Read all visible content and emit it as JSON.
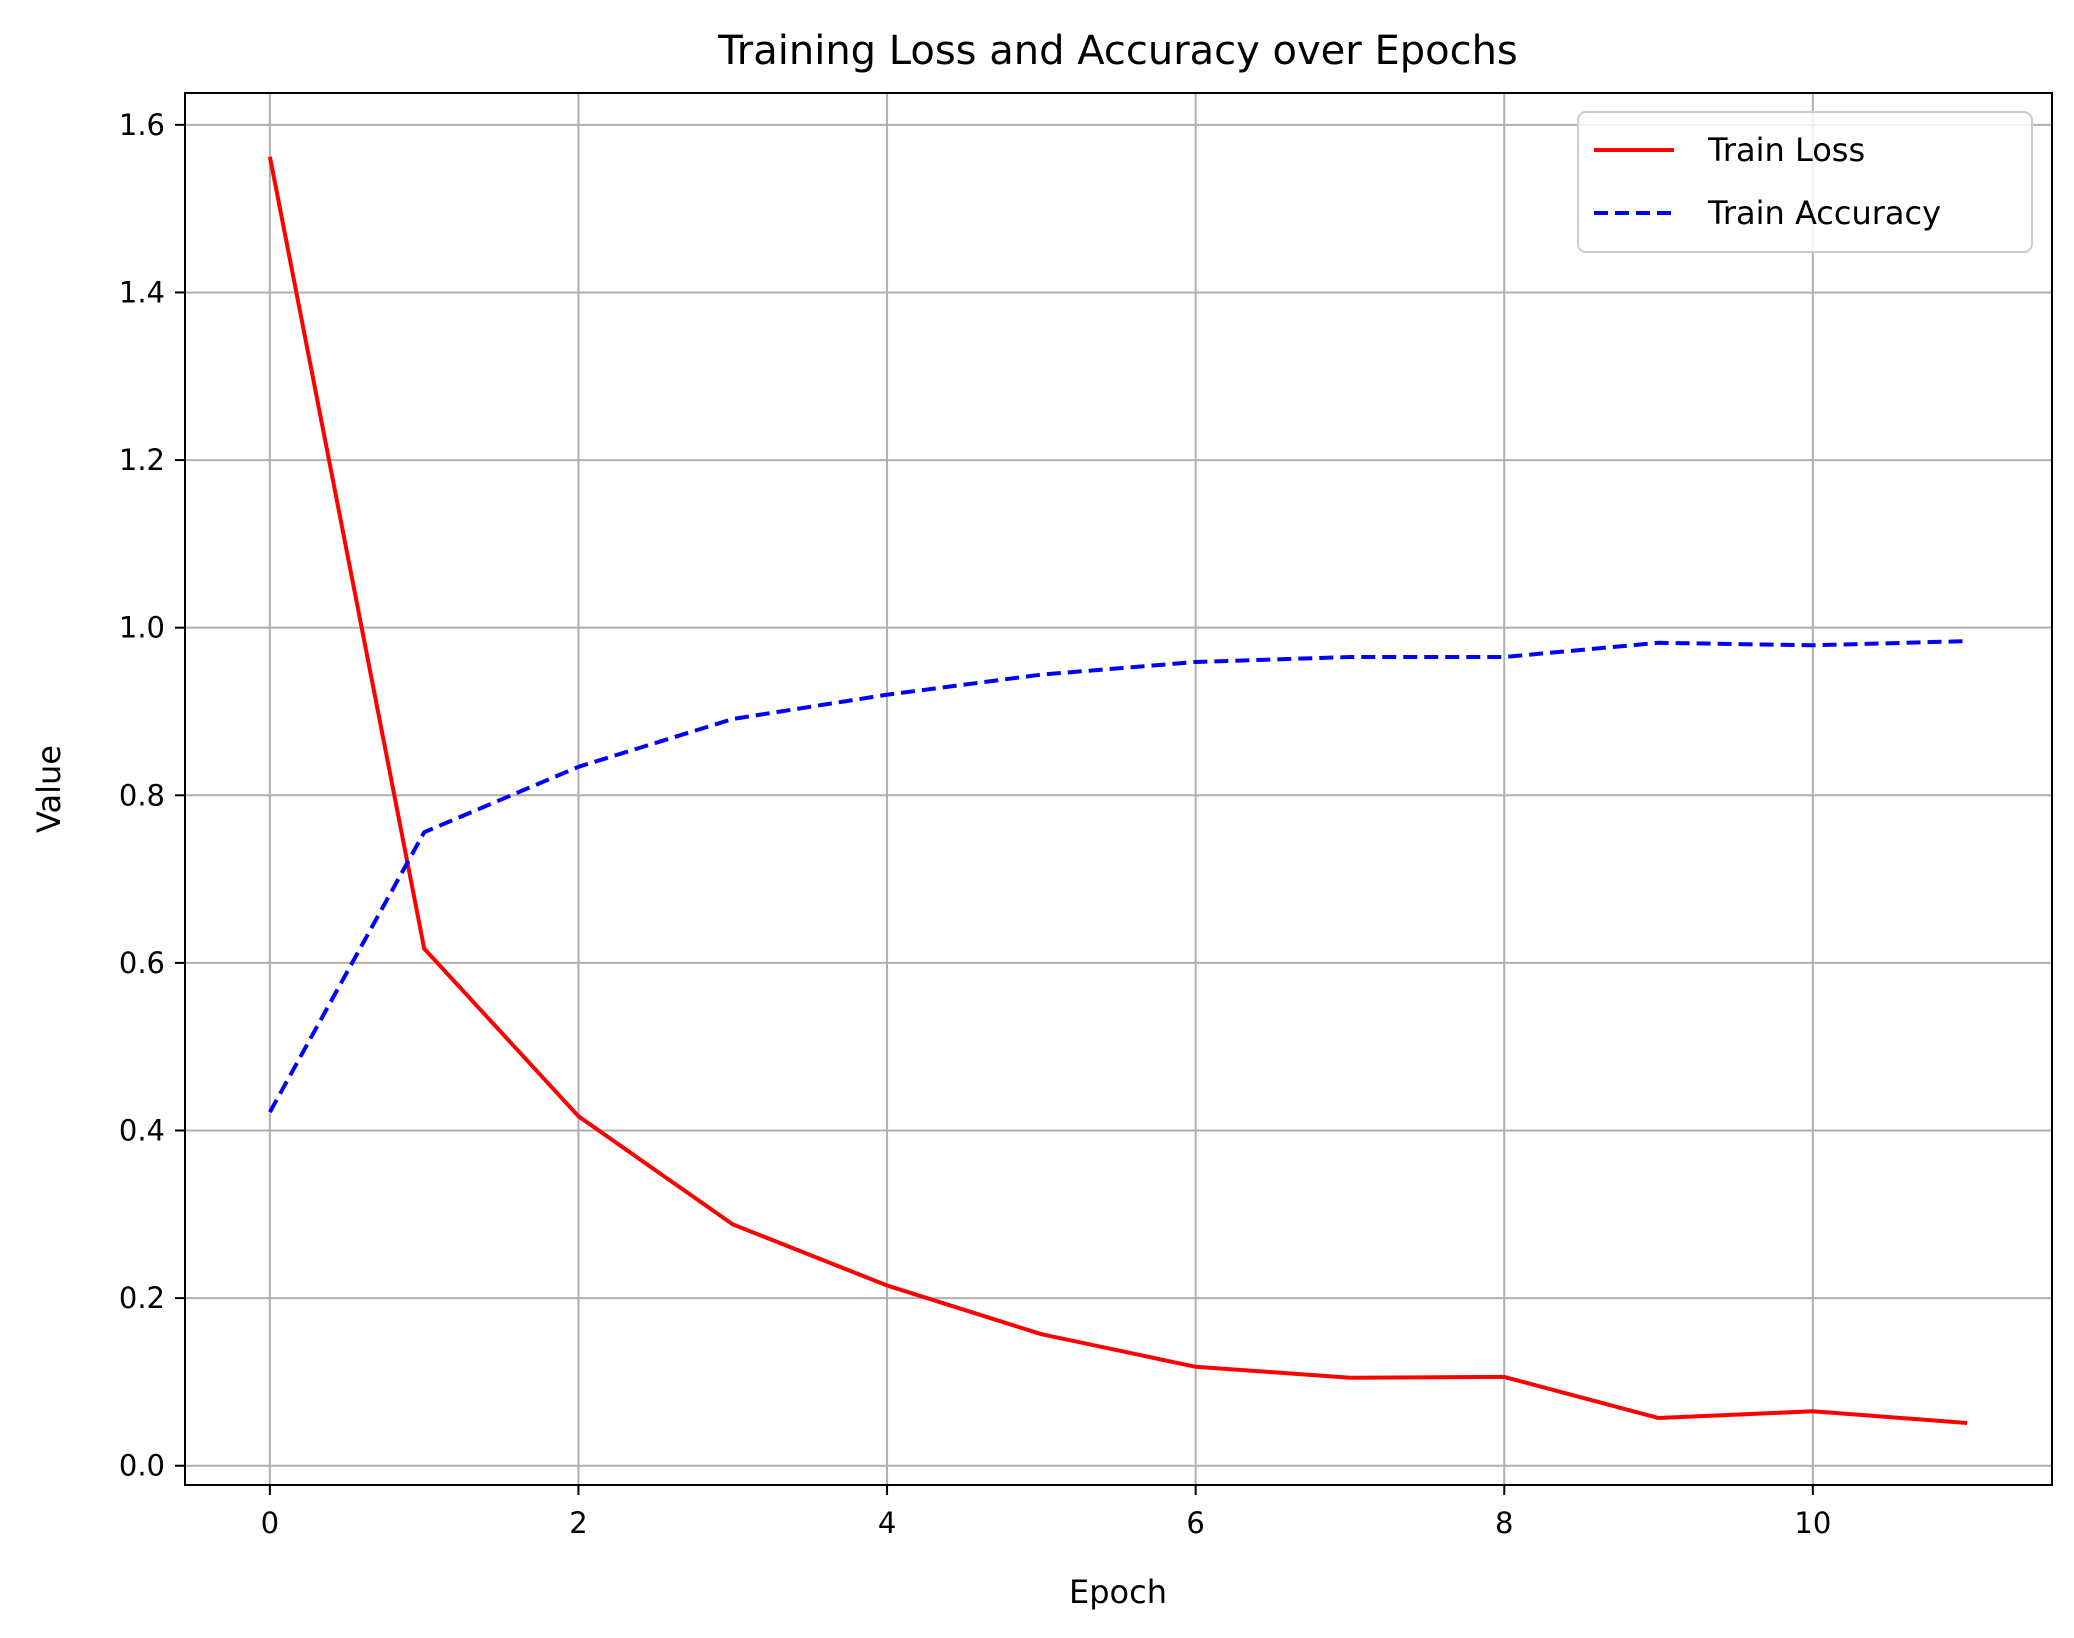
{
  "chart_data": {
    "type": "line",
    "title": "Training Loss and Accuracy over Epochs",
    "xlabel": "Epoch",
    "ylabel": "Value",
    "xlim": [
      -0.55,
      11.55
    ],
    "ylim": [
      -0.023,
      1.638
    ],
    "x_ticks": [
      0,
      2,
      4,
      6,
      8,
      10
    ],
    "y_ticks": [
      0.0,
      0.2,
      0.4,
      0.6,
      0.8,
      1.0,
      1.2,
      1.4,
      1.6
    ],
    "x_tick_labels": [
      "0",
      "2",
      "4",
      "6",
      "8",
      "10"
    ],
    "y_tick_labels": [
      "0.0",
      "0.2",
      "0.4",
      "0.6",
      "0.8",
      "1.0",
      "1.2",
      "1.4",
      "1.6"
    ],
    "grid": true,
    "legend_position": "top-right",
    "x": [
      0,
      1,
      2,
      3,
      4,
      5,
      6,
      7,
      8,
      9,
      10,
      11
    ],
    "series": [
      {
        "name": "Train Loss",
        "color": "#ff0000",
        "line_style": "solid",
        "values": [
          1.562,
          0.617,
          0.417,
          0.288,
          0.215,
          0.157,
          0.118,
          0.105,
          0.106,
          0.057,
          0.065,
          0.051
        ]
      },
      {
        "name": "Train Accuracy",
        "color": "#0000ff",
        "line_style": "dashed",
        "values": [
          0.422,
          0.756,
          0.834,
          0.891,
          0.92,
          0.944,
          0.959,
          0.965,
          0.965,
          0.982,
          0.979,
          0.984
        ]
      }
    ]
  }
}
